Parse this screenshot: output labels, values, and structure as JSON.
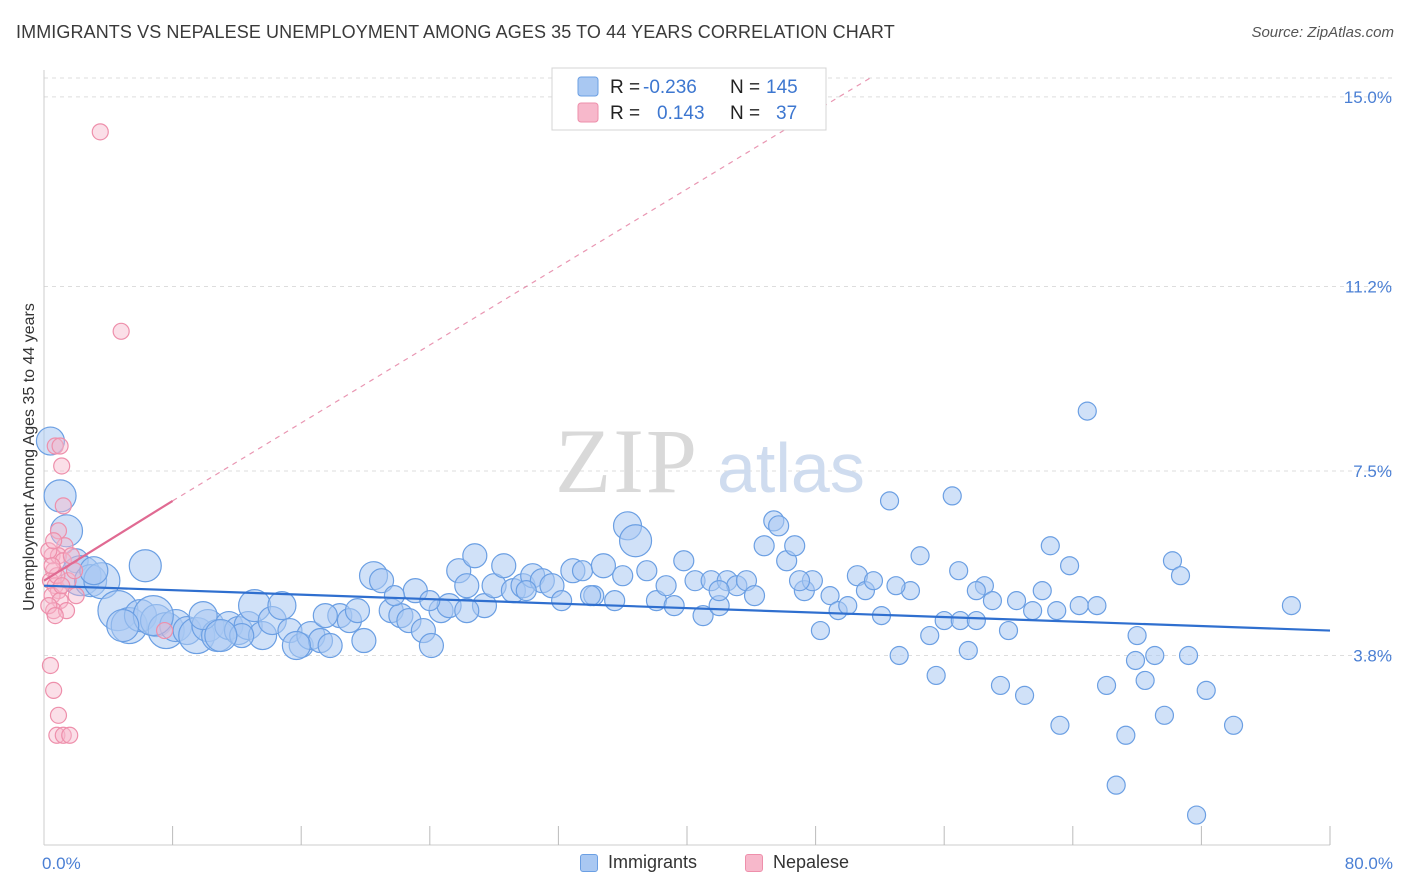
{
  "title": "IMMIGRANTS VS NEPALESE UNEMPLOYMENT AMONG AGES 35 TO 44 YEARS CORRELATION CHART",
  "source": "Source: ZipAtlas.com",
  "watermark": {
    "zip": "ZIP",
    "atlas": "atlas"
  },
  "colors": {
    "immigrants_fill": "#a9c8f2",
    "immigrants_stroke": "#6b9fe3",
    "immigrants_line": "#2f6fcf",
    "nepalese_fill": "#f7b8cb",
    "nepalese_stroke": "#ee8fab",
    "nepalese_line": "#e06a92",
    "axis_text": "#4a7fd4",
    "grid": "#dddddd"
  },
  "legend": {
    "rows": [
      {
        "r_label": "R =",
        "r_value": "-0.236",
        "n_label": "N =",
        "n_value": "145"
      },
      {
        "r_label": "R =",
        "r_value": "0.143",
        "n_label": "N =",
        "n_value": "37"
      }
    ]
  },
  "bottom_legend": {
    "immigrants": "Immigrants",
    "nepalese": "Nepalese"
  },
  "chart_data": {
    "type": "scatter",
    "title": "IMMIGRANTS VS NEPALESE UNEMPLOYMENT AMONG AGES 35 TO 44 YEARS CORRELATION CHART",
    "xlabel": "",
    "ylabel": "Unemployment Among Ages 35 to 44 years",
    "xlim": [
      0,
      80
    ],
    "ylim": [
      0,
      15.5
    ],
    "x_tick_labels": [
      "0.0%",
      "80.0%"
    ],
    "y_ticks": [
      3.8,
      7.5,
      11.2,
      15.0
    ],
    "y_tick_labels": [
      "3.8%",
      "7.5%",
      "11.2%",
      "15.0%"
    ],
    "grid": true,
    "legend_position": "top-center",
    "series": [
      {
        "name": "Immigrants",
        "r": -0.236,
        "n": 145,
        "trend": {
          "x": [
            0,
            80
          ],
          "y": [
            5.2,
            4.3
          ]
        },
        "points": [
          [
            0.4,
            8.1,
            14
          ],
          [
            1.0,
            7.0,
            16
          ],
          [
            1.4,
            6.3,
            16
          ],
          [
            2.0,
            5.7,
            12
          ],
          [
            2.3,
            5.4,
            20
          ],
          [
            2.9,
            5.3,
            16
          ],
          [
            3.6,
            5.3,
            18
          ],
          [
            4.6,
            4.7,
            20
          ],
          [
            5.3,
            4.4,
            18
          ],
          [
            6.0,
            4.6,
            16
          ],
          [
            6.3,
            5.6,
            16
          ],
          [
            7.0,
            4.5,
            16
          ],
          [
            7.6,
            4.3,
            18
          ],
          [
            8.2,
            4.4,
            16
          ],
          [
            8.9,
            4.3,
            14
          ],
          [
            9.5,
            4.2,
            18
          ],
          [
            10.2,
            4.4,
            16
          ],
          [
            10.8,
            4.2,
            16
          ],
          [
            11.5,
            4.4,
            14
          ],
          [
            12.1,
            4.3,
            14
          ],
          [
            12.7,
            4.4,
            14
          ],
          [
            13.1,
            4.8,
            16
          ],
          [
            13.6,
            4.2,
            14
          ],
          [
            14.2,
            4.5,
            14
          ],
          [
            14.8,
            4.8,
            14
          ],
          [
            15.3,
            4.3,
            12
          ],
          [
            16.0,
            4.0,
            12
          ],
          [
            16.6,
            4.2,
            14
          ],
          [
            17.2,
            4.1,
            12
          ],
          [
            17.8,
            4.0,
            12
          ],
          [
            18.4,
            4.6,
            12
          ],
          [
            19.0,
            4.5,
            12
          ],
          [
            19.5,
            4.7,
            12
          ],
          [
            19.9,
            4.1,
            12
          ],
          [
            20.5,
            5.4,
            14
          ],
          [
            21.0,
            5.3,
            12
          ],
          [
            21.6,
            4.7,
            12
          ],
          [
            22.2,
            4.6,
            12
          ],
          [
            22.7,
            4.5,
            12
          ],
          [
            23.1,
            5.1,
            12
          ],
          [
            23.6,
            4.3,
            12
          ],
          [
            24.1,
            4.0,
            12
          ],
          [
            24.7,
            4.7,
            12
          ],
          [
            25.2,
            4.8,
            12
          ],
          [
            25.8,
            5.5,
            12
          ],
          [
            26.3,
            5.2,
            12
          ],
          [
            26.8,
            5.8,
            12
          ],
          [
            27.4,
            4.8,
            12
          ],
          [
            28.0,
            5.2,
            12
          ],
          [
            28.6,
            5.6,
            12
          ],
          [
            29.2,
            5.1,
            12
          ],
          [
            29.8,
            5.2,
            12
          ],
          [
            30.4,
            5.4,
            12
          ],
          [
            31.0,
            5.3,
            12
          ],
          [
            31.6,
            5.2,
            12
          ],
          [
            32.2,
            4.9,
            10
          ],
          [
            32.9,
            5.5,
            12
          ],
          [
            33.5,
            5.5,
            10
          ],
          [
            34.2,
            5.0,
            10
          ],
          [
            34.8,
            5.6,
            12
          ],
          [
            35.5,
            4.9,
            10
          ],
          [
            36.3,
            6.4,
            14
          ],
          [
            36.8,
            6.1,
            16
          ],
          [
            37.5,
            5.5,
            10
          ],
          [
            38.1,
            4.9,
            10
          ],
          [
            38.7,
            5.2,
            10
          ],
          [
            39.2,
            4.8,
            10
          ],
          [
            39.8,
            5.7,
            10
          ],
          [
            40.5,
            5.3,
            10
          ],
          [
            41.0,
            4.6,
            10
          ],
          [
            41.5,
            5.3,
            10
          ],
          [
            42.0,
            4.8,
            10
          ],
          [
            42.5,
            5.3,
            10
          ],
          [
            43.1,
            5.2,
            10
          ],
          [
            43.7,
            5.3,
            10
          ],
          [
            44.2,
            5.0,
            10
          ],
          [
            44.8,
            6.0,
            10
          ],
          [
            45.4,
            6.5,
            10
          ],
          [
            45.7,
            6.4,
            10
          ],
          [
            46.2,
            5.7,
            10
          ],
          [
            46.7,
            6.0,
            10
          ],
          [
            47.3,
            5.1,
            10
          ],
          [
            47.8,
            5.3,
            10
          ],
          [
            48.3,
            4.3,
            9
          ],
          [
            48.9,
            5.0,
            9
          ],
          [
            49.4,
            4.7,
            9
          ],
          [
            50.0,
            4.8,
            9
          ],
          [
            50.6,
            5.4,
            10
          ],
          [
            51.1,
            5.1,
            9
          ],
          [
            51.6,
            5.3,
            9
          ],
          [
            52.1,
            4.6,
            9
          ],
          [
            52.6,
            6.9,
            9
          ],
          [
            53.2,
            3.8,
            9
          ],
          [
            53.9,
            5.1,
            9
          ],
          [
            54.5,
            5.8,
            9
          ],
          [
            55.1,
            4.2,
            9
          ],
          [
            55.5,
            3.4,
            9
          ],
          [
            56.0,
            4.5,
            9
          ],
          [
            56.5,
            7.0,
            9
          ],
          [
            57.0,
            4.5,
            9
          ],
          [
            57.5,
            3.9,
            9
          ],
          [
            58.0,
            4.5,
            9
          ],
          [
            58.5,
            5.2,
            9
          ],
          [
            59.0,
            4.9,
            9
          ],
          [
            59.5,
            3.2,
            9
          ],
          [
            60.0,
            4.3,
            9
          ],
          [
            60.5,
            4.9,
            9
          ],
          [
            61.0,
            3.0,
            9
          ],
          [
            61.5,
            4.7,
            9
          ],
          [
            62.1,
            5.1,
            9
          ],
          [
            62.6,
            6.0,
            9
          ],
          [
            63.2,
            2.4,
            9
          ],
          [
            63.8,
            5.6,
            9
          ],
          [
            64.4,
            4.8,
            9
          ],
          [
            64.9,
            8.7,
            9
          ],
          [
            65.5,
            4.8,
            9
          ],
          [
            66.1,
            3.2,
            9
          ],
          [
            66.7,
            1.2,
            9
          ],
          [
            67.3,
            2.2,
            9
          ],
          [
            67.9,
            3.7,
            9
          ],
          [
            68.5,
            3.3,
            9
          ],
          [
            69.1,
            3.8,
            9
          ],
          [
            69.7,
            2.6,
            9
          ],
          [
            70.2,
            5.7,
            9
          ],
          [
            70.7,
            5.4,
            9
          ],
          [
            71.2,
            3.8,
            9
          ],
          [
            71.7,
            0.6,
            9
          ],
          [
            72.3,
            3.1,
            9
          ],
          [
            77.6,
            4.8,
            9
          ],
          [
            56.9,
            5.5,
            9
          ],
          [
            21.8,
            5.0,
            10
          ],
          [
            12.3,
            4.2,
            12
          ],
          [
            9.9,
            4.6,
            14
          ],
          [
            6.8,
            4.6,
            20
          ],
          [
            4.9,
            4.4,
            16
          ],
          [
            3.1,
            5.5,
            14
          ],
          [
            17.5,
            4.6,
            12
          ],
          [
            24.0,
            4.9,
            10
          ],
          [
            30.0,
            5.1,
            10
          ],
          [
            36.0,
            5.4,
            10
          ],
          [
            42.0,
            5.1,
            10
          ],
          [
            47.0,
            5.3,
            10
          ],
          [
            53.0,
            5.2,
            9
          ],
          [
            58.0,
            5.1,
            9
          ],
          [
            63.0,
            4.7,
            9
          ],
          [
            68.0,
            4.2,
            9
          ],
          [
            74.0,
            2.4,
            9
          ],
          [
            26.3,
            4.7,
            12
          ],
          [
            34.0,
            5.0,
            10
          ],
          [
            15.7,
            4.0,
            14
          ],
          [
            11.0,
            4.2,
            16
          ]
        ]
      },
      {
        "name": "Nepalese",
        "r": 0.143,
        "n": 37,
        "trend_solid": {
          "x": [
            0,
            8.0
          ],
          "y": [
            5.3,
            6.9
          ]
        },
        "trend_dashed": {
          "x": [
            8.0,
            51.5
          ],
          "y": [
            6.9,
            15.4
          ]
        },
        "points": [
          [
            3.5,
            14.3,
            8
          ],
          [
            4.8,
            10.3,
            8
          ],
          [
            0.7,
            8.0,
            8
          ],
          [
            1.0,
            8.0,
            8
          ],
          [
            1.1,
            7.6,
            8
          ],
          [
            1.2,
            6.8,
            8
          ],
          [
            0.9,
            6.3,
            8
          ],
          [
            1.3,
            6.0,
            8
          ],
          [
            0.5,
            5.8,
            8
          ],
          [
            0.9,
            5.8,
            8
          ],
          [
            1.2,
            5.7,
            8
          ],
          [
            0.6,
            5.5,
            8
          ],
          [
            0.4,
            5.3,
            8
          ],
          [
            0.7,
            5.2,
            8
          ],
          [
            0.9,
            5.1,
            8
          ],
          [
            0.5,
            5.0,
            8
          ],
          [
            1.0,
            4.9,
            8
          ],
          [
            0.6,
            4.7,
            8
          ],
          [
            1.4,
            4.7,
            8
          ],
          [
            0.4,
            3.6,
            8
          ],
          [
            0.6,
            3.1,
            8
          ],
          [
            0.9,
            2.6,
            8
          ],
          [
            0.8,
            2.2,
            8
          ],
          [
            1.2,
            2.2,
            8
          ],
          [
            1.6,
            2.2,
            8
          ],
          [
            7.5,
            4.3,
            8
          ],
          [
            0.3,
            5.9,
            8
          ],
          [
            1.5,
            5.3,
            8
          ],
          [
            0.8,
            5.4,
            8
          ],
          [
            2.0,
            5.0,
            8
          ],
          [
            0.5,
            5.6,
            8
          ],
          [
            1.1,
            5.2,
            8
          ],
          [
            0.3,
            4.8,
            8
          ],
          [
            1.7,
            5.8,
            8
          ],
          [
            0.6,
            6.1,
            8
          ],
          [
            1.9,
            5.5,
            8
          ],
          [
            0.7,
            4.6,
            8
          ]
        ]
      }
    ]
  }
}
